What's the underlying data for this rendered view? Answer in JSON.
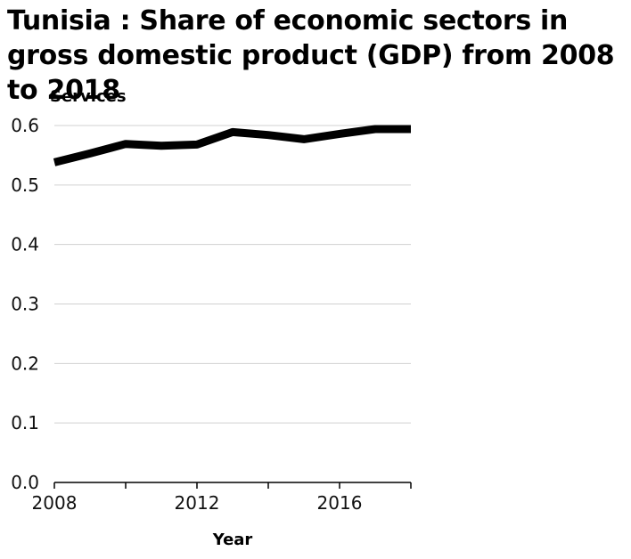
{
  "chart_data": {
    "type": "line",
    "title": "Tunisia : Share of economic sectors in gross domestic product (GDP) from 2008 to 2018",
    "xlabel": "Year",
    "ylabel": "Services",
    "xlim": [
      2008,
      2018
    ],
    "ylim": [
      0,
      0.6
    ],
    "xticks": [
      2008,
      2012,
      2016
    ],
    "xtick_marks": [
      2008,
      2010,
      2012,
      2014,
      2016,
      2018
    ],
    "yticks": [
      "0.0",
      "0.1",
      "0.2",
      "0.3",
      "0.4",
      "0.5",
      "0.6"
    ],
    "grid": "horizontal",
    "line_color": "#000000",
    "series": [
      {
        "x": [
          2008,
          2009,
          2010,
          2011,
          2012,
          2013,
          2014,
          2015,
          2016,
          2017,
          2018
        ],
        "values": [
          0.538,
          0.553,
          0.569,
          0.566,
          0.568,
          0.589,
          0.584,
          0.577,
          0.586,
          0.594,
          0.594
        ]
      }
    ]
  }
}
